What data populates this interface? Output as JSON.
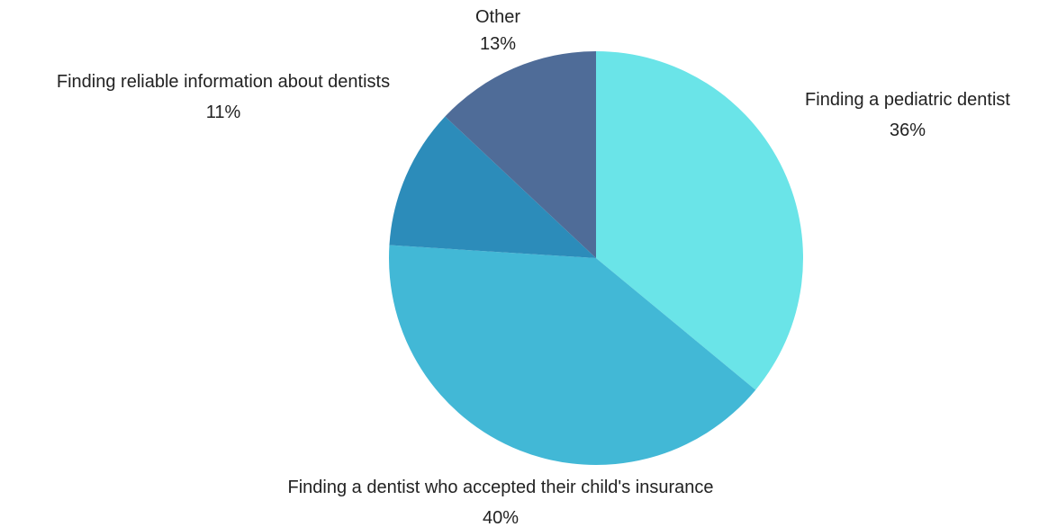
{
  "chart_data": {
    "type": "pie",
    "title": "",
    "slices": [
      {
        "label": "Finding a pediatric dentist",
        "value": 36,
        "value_label": "36%",
        "color": "#6ae4e8"
      },
      {
        "label": "Finding a dentist who accepted their child's insurance",
        "value": 40,
        "value_label": "40%",
        "color": "#42b8d6"
      },
      {
        "label": "Finding reliable information about dentists",
        "value": 11,
        "value_label": "11%",
        "color": "#2c8cba"
      },
      {
        "label": "Other",
        "value": 13,
        "value_label": "13%",
        "color": "#4f6c98"
      }
    ],
    "start_angle": "12 o'clock",
    "direction": "clockwise",
    "legend": "none (labels placed outside slices)"
  }
}
